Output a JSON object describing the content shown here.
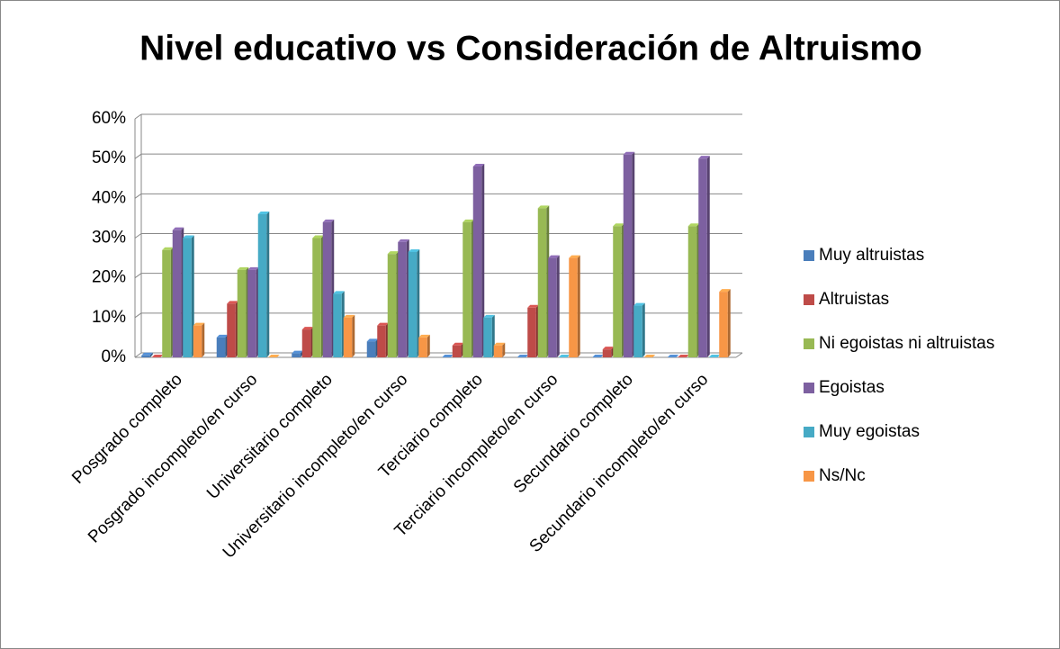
{
  "chart_data": {
    "type": "bar3d",
    "title": "Nivel educativo vs Consideración de Altruismo",
    "categories": [
      "Posgrado completo",
      "Posgrado incompleto/en curso",
      "Universitario completo",
      "Universitario incompleto/en curso",
      "Terciario completo",
      "Terciario incompleto/en curso",
      "Secundario completo",
      "Secundario incompleto/en curso"
    ],
    "series": [
      {
        "name": "Muy altruistas",
        "color": "#4a7ebb",
        "values": [
          0.5,
          5,
          1,
          4,
          0,
          0,
          0,
          0
        ]
      },
      {
        "name": "Altruistas",
        "color": "#be4b48",
        "values": [
          0,
          13.5,
          7,
          8,
          3,
          12.5,
          2,
          0
        ]
      },
      {
        "name": "Ni egoistas ni altruistas",
        "color": "#98b954",
        "values": [
          27,
          22,
          30,
          26,
          34,
          37.5,
          33,
          33
        ]
      },
      {
        "name": "Egoistas",
        "color": "#7d60a0",
        "values": [
          32,
          22,
          34,
          29,
          48,
          25,
          51,
          50
        ]
      },
      {
        "name": "Muy egoistas",
        "color": "#46aac5",
        "values": [
          30,
          36,
          16,
          26.5,
          10,
          0,
          13,
          0
        ]
      },
      {
        "name": "Ns/Nc",
        "color": "#f79646",
        "values": [
          8,
          0,
          10,
          5,
          3,
          25,
          0,
          16.5
        ]
      }
    ],
    "ylim": [
      0,
      60
    ],
    "yticks": [
      {
        "value": 0,
        "label": "0%"
      },
      {
        "value": 10,
        "label": "10%"
      },
      {
        "value": 20,
        "label": "20%"
      },
      {
        "value": 30,
        "label": "30%"
      },
      {
        "value": 40,
        "label": "40%"
      },
      {
        "value": 50,
        "label": "50%"
      },
      {
        "value": 60,
        "label": "60%"
      }
    ],
    "grid": true,
    "legend": "right"
  }
}
